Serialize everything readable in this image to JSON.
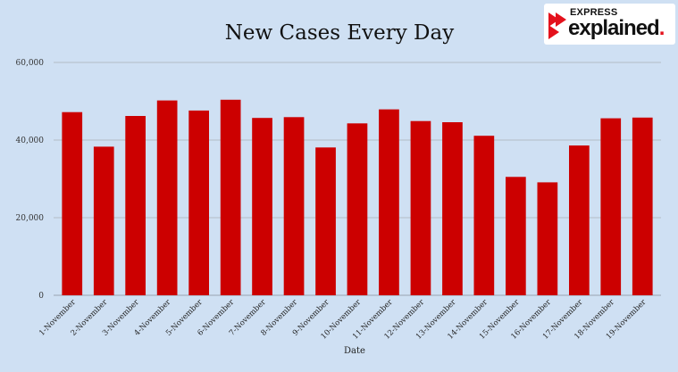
{
  "branding": {
    "logo_top": "EXPRESS",
    "logo_main": "explained",
    "logo_dot": ".",
    "accent_color": "#e4111c"
  },
  "chart_data": {
    "type": "bar",
    "title": "New Cases Every Day",
    "xlabel": "Date",
    "ylabel": "",
    "ylim": [
      0,
      60000
    ],
    "yticks": [
      0,
      20000,
      40000,
      60000
    ],
    "ytick_labels": [
      "0",
      "20,000",
      "40,000",
      "60,000"
    ],
    "grid": true,
    "bar_color": "#cc0000",
    "categories": [
      "1-November",
      "2-November",
      "3-November",
      "4-November",
      "5-November",
      "6-November",
      "7-November",
      "8-November",
      "9-November",
      "10-November",
      "11-November",
      "12-November",
      "13-November",
      "14-November",
      "15-November",
      "16-November",
      "17-November",
      "18-November",
      "19-November"
    ],
    "values": [
      47200,
      38300,
      46200,
      50200,
      47600,
      50400,
      45700,
      45900,
      38100,
      44300,
      47900,
      44900,
      44600,
      41100,
      30500,
      29100,
      38600,
      45600,
      45800
    ]
  }
}
